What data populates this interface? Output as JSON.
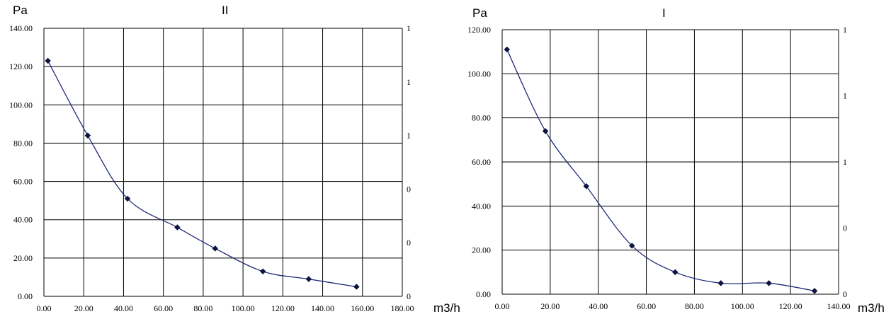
{
  "chart_data": [
    {
      "type": "line",
      "title": "II",
      "ylabel": "Pa",
      "xlabel": "m3/h",
      "xlim": [
        0,
        180
      ],
      "ylim": [
        0,
        140
      ],
      "grid": true,
      "legend": "none",
      "x_ticks": [
        "0.00",
        "20.00",
        "40.00",
        "60.00",
        "80.00",
        "100.00",
        "120.00",
        "140.00",
        "160.00",
        "180.00"
      ],
      "y_ticks": [
        "0.00",
        "20.00",
        "40.00",
        "60.00",
        "80.00",
        "100.00",
        "120.00",
        "140.00"
      ],
      "y2_ticks": [
        "0",
        "0",
        "0",
        "1",
        "1",
        "1"
      ],
      "series": [
        {
          "color": "#1f2a7a",
          "points": [
            [
              2,
              123
            ],
            [
              22,
              84
            ],
            [
              42,
              51
            ],
            [
              67,
              36
            ],
            [
              86,
              25
            ],
            [
              110,
              13
            ],
            [
              133,
              9
            ],
            [
              157,
              5
            ]
          ]
        }
      ]
    },
    {
      "type": "line",
      "title": "I",
      "ylabel": "Pa",
      "xlabel": "m3/h",
      "xlim": [
        0,
        140
      ],
      "ylim": [
        0,
        120
      ],
      "grid": true,
      "legend": "none",
      "x_ticks": [
        "0.00",
        "20.00",
        "40.00",
        "60.00",
        "80.00",
        "100.00",
        "120.00",
        "140.00"
      ],
      "y_ticks": [
        "0.00",
        "20.00",
        "40.00",
        "60.00",
        "80.00",
        "100.00",
        "120.00"
      ],
      "y2_ticks": [
        "0",
        "0",
        "1",
        "1",
        "1"
      ],
      "series": [
        {
          "color": "#1f2a7a",
          "points": [
            [
              2,
              111
            ],
            [
              18,
              74
            ],
            [
              35,
              49
            ],
            [
              54,
              22
            ],
            [
              72,
              10
            ],
            [
              91,
              5
            ],
            [
              111,
              5
            ],
            [
              130,
              1.5
            ]
          ]
        }
      ]
    }
  ]
}
